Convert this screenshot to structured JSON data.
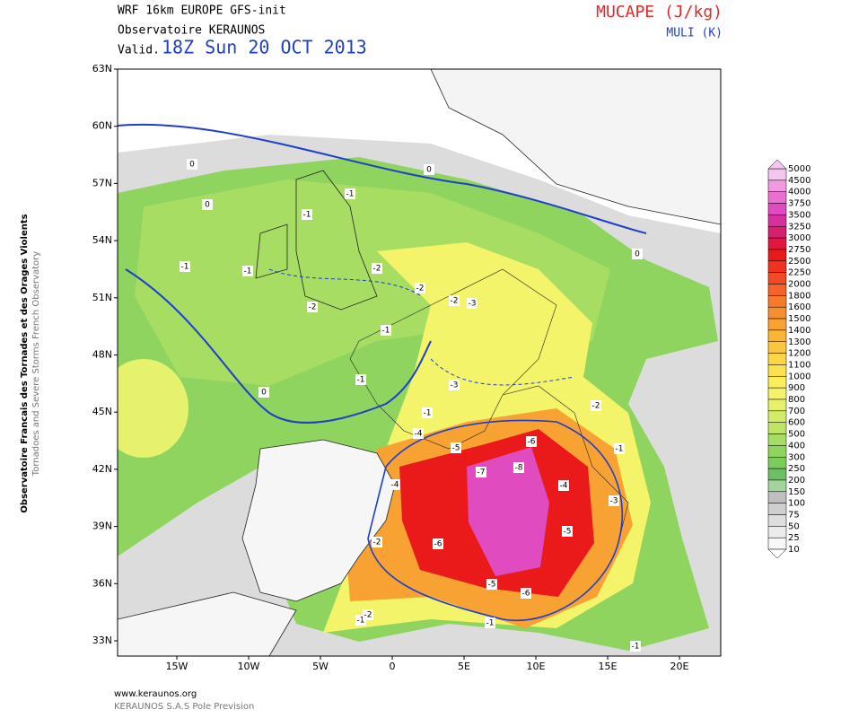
{
  "header": {
    "model": "WRF 16km EUROPE   GFS-init",
    "source": "Observatoire KERAUNOS",
    "valid_prefix": "Valid.",
    "valid_time": "18Z Sun 20 OCT 2013",
    "field": "MUCAPE (J/kg)",
    "contour_field": "MULI (K)"
  },
  "side_text": [
    "Observatoire Francais des Tornades et des Orages Violents",
    "Tornadoes and Severe Storms French Observatory"
  ],
  "axes": {
    "lat_labels": [
      "63N",
      "60N",
      "57N",
      "54N",
      "51N",
      "48N",
      "45N",
      "42N",
      "39N",
      "36N",
      "33N"
    ],
    "lon_labels": [
      "15W",
      "10W",
      "5W",
      "0",
      "5E",
      "10E",
      "15E",
      "20E"
    ]
  },
  "colorbar": {
    "levels": [
      5000,
      4500,
      4000,
      3750,
      3500,
      3250,
      3000,
      2750,
      2500,
      2250,
      2000,
      1800,
      1600,
      1500,
      1400,
      1300,
      1200,
      1100,
      1000,
      900,
      800,
      700,
      600,
      500,
      400,
      300,
      250,
      200,
      150,
      100,
      75,
      50,
      25,
      10
    ],
    "colors": [
      "#f7c6ee",
      "#f29ae0",
      "#ea6fd0",
      "#e04bc0",
      "#d6309f",
      "#d81f6e",
      "#e0183f",
      "#ea1a1a",
      "#f0321e",
      "#f24a22",
      "#f46428",
      "#f57a2c",
      "#f78e30",
      "#f9a234",
      "#fbb438",
      "#fcc53c",
      "#fdd545",
      "#fde24f",
      "#fbee5c",
      "#f4f46a",
      "#e6f26e",
      "#d2ec6a",
      "#bde566",
      "#a6dd62",
      "#8fd45e",
      "#7ccb5d",
      "#6cc064",
      "#a4d3a0",
      "#bfbfbf",
      "#cfcfcf",
      "#dedede",
      "#ececec",
      "#f8f8f8"
    ]
  },
  "contour_labels": [
    0,
    0,
    0,
    0,
    -1,
    -1,
    -1,
    -1,
    -1,
    -2,
    -2,
    -2,
    -3,
    -2,
    -1,
    -1,
    -3,
    -4,
    -5,
    -6,
    -7,
    -8,
    -4,
    -5,
    -6,
    -6,
    -5,
    -4,
    -3,
    -2,
    -1,
    -1,
    -2,
    -1,
    -2,
    -1,
    0
  ],
  "footer": {
    "url": "www.keraunos.org",
    "company": "KERAUNOS S.A.S Pole Prevision"
  }
}
